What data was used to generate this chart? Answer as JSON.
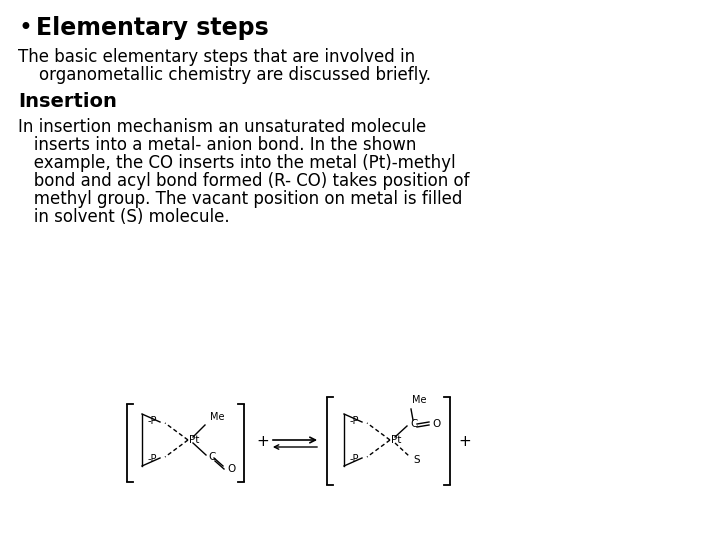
{
  "background_color": "#ffffff",
  "bullet": "•",
  "bullet_title": "Elementary steps",
  "line1": "The basic elementary steps that are involved in",
  "line2": "    organometallic chemistry are discussed briefly.",
  "insertion_label": "Insertion",
  "paragraph": [
    "In insertion mechanism an unsaturated molecule",
    "   inserts into a metal- anion bond. In the shown",
    "   example, the CO inserts into the metal (Pt)-methyl",
    "   bond and acyl bond formed (R- CO) takes position of",
    "   methyl group. The vacant position on metal is filled",
    "   in solvent (S) molecule."
  ],
  "text_color": "#000000",
  "title_fontsize": 15,
  "body_fontsize": 12,
  "bold_fontsize": 13
}
